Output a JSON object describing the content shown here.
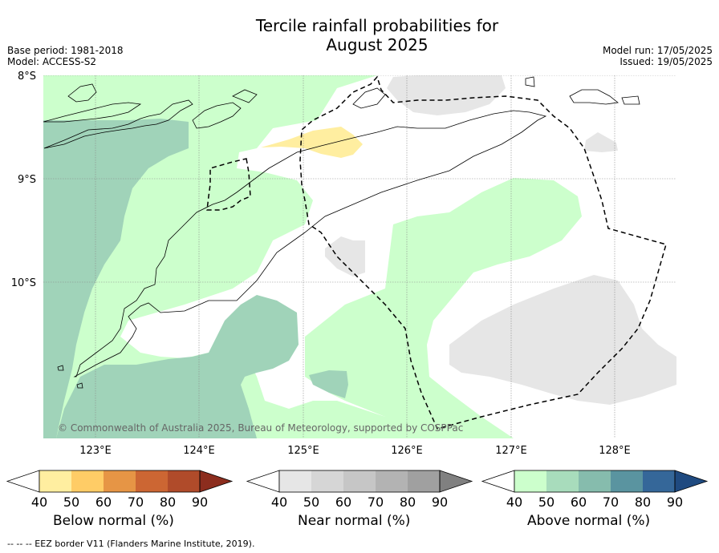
{
  "title": {
    "line1": "Tercile rainfall probabilities for",
    "line2": "August 2025"
  },
  "meta": {
    "base_period": "Base period: 1981-2018",
    "model": "Model: ACCESS-S2",
    "model_run": "Model run: 17/05/2025",
    "issued": "Issued: 19/05/2025"
  },
  "map": {
    "lat_labels": [
      "8°S",
      "9°S",
      "10°S"
    ],
    "lon_labels": [
      "123°E",
      "124°E",
      "125°E",
      "126°E",
      "127°E",
      "128°E"
    ],
    "copyright": "© Commonwealth of Australia 2025, Bureau of Meteorology, supported by COSPPac",
    "colors": {
      "above_40": "#ccffcc",
      "above_50": "#a0d3b9",
      "near_40": "#e6e6e6",
      "below_40": "#ffeea0"
    }
  },
  "colorbars": [
    {
      "label": "Below normal (%)",
      "ticks": [
        "40",
        "50",
        "60",
        "70",
        "80",
        "90"
      ],
      "colors": [
        "#ffffff",
        "#ffeea0",
        "#ffcc66",
        "#e69545",
        "#cc6633",
        "#b04b2a",
        "#8c2d1e"
      ]
    },
    {
      "label": "Near normal (%)",
      "ticks": [
        "40",
        "50",
        "60",
        "70",
        "80",
        "90"
      ],
      "colors": [
        "#ffffff",
        "#e6e6e6",
        "#d6d6d6",
        "#c6c6c6",
        "#b3b3b3",
        "#a0a0a0",
        "#808080"
      ]
    },
    {
      "label": "Above normal (%)",
      "ticks": [
        "40",
        "50",
        "60",
        "70",
        "80",
        "90"
      ],
      "colors": [
        "#ffffff",
        "#ccffcc",
        "#a8dcbc",
        "#86bcad",
        "#5a94a0",
        "#356799",
        "#1f4a80"
      ]
    }
  ],
  "footer": "--  --  -- EEZ border V11 (Flanders Marine Institute, 2019)."
}
